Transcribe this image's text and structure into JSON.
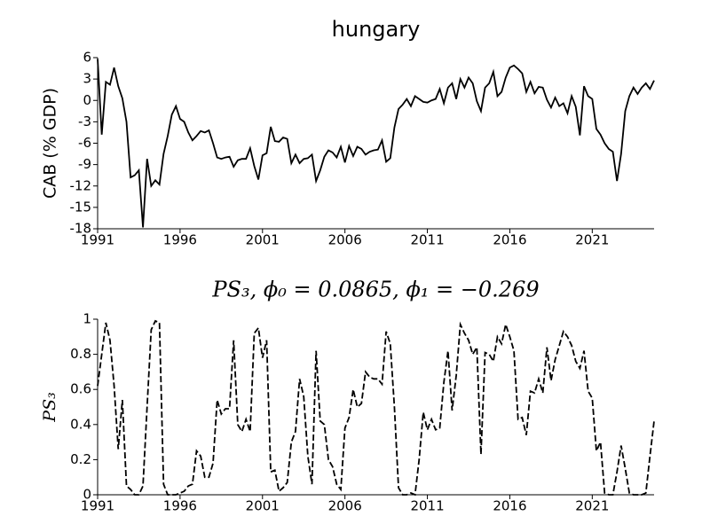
{
  "chart_data": [
    {
      "type": "line",
      "title": "hungary",
      "ylabel": "CAB (% GDP)",
      "x": [
        1991,
        1991.25,
        1991.5,
        1991.75,
        1992,
        1992.25,
        1992.5,
        1992.75,
        1993,
        1993.25,
        1993.5,
        1993.75,
        1994,
        1994.25,
        1994.5,
        1994.75,
        1995,
        1995.25,
        1995.5,
        1995.75,
        1996,
        1996.25,
        1996.5,
        1996.75,
        1997,
        1997.25,
        1997.5,
        1997.75,
        1998,
        1998.25,
        1998.5,
        1998.75,
        1999,
        1999.25,
        1999.5,
        1999.75,
        2000,
        2000.25,
        2000.5,
        2000.75,
        2001,
        2001.25,
        2001.5,
        2001.75,
        2002,
        2002.25,
        2002.5,
        2002.75,
        2003,
        2003.25,
        2003.5,
        2003.75,
        2004,
        2004.25,
        2004.5,
        2004.75,
        2005,
        2005.25,
        2005.5,
        2005.75,
        2006,
        2006.25,
        2006.5,
        2006.75,
        2007,
        2007.25,
        2007.5,
        2007.75,
        2008,
        2008.25,
        2008.5,
        2008.75,
        2009,
        2009.25,
        2009.5,
        2009.75,
        2010,
        2010.25,
        2010.5,
        2010.75,
        2011,
        2011.25,
        2011.5,
        2011.75,
        2012,
        2012.25,
        2012.5,
        2012.75,
        2013,
        2013.25,
        2013.5,
        2013.75,
        2014,
        2014.25,
        2014.5,
        2014.75,
        2015,
        2015.25,
        2015.5,
        2015.75,
        2016,
        2016.25,
        2016.5,
        2016.75,
        2017,
        2017.25,
        2017.5,
        2017.75,
        2018,
        2018.25,
        2018.5,
        2018.75,
        2019,
        2019.25,
        2019.5,
        2019.75,
        2020,
        2020.25,
        2020.5,
        2020.75,
        2021,
        2021.25,
        2021.5,
        2021.75,
        2022,
        2022.25,
        2022.5,
        2022.75,
        2023,
        2023.25,
        2023.5,
        2023.75,
        2024,
        2024.25,
        2024.5,
        2024.75
      ],
      "series": [
        {
          "name": "CAB",
          "color": "#000000",
          "linestyle": "solid",
          "values": [
            5.8,
            -4.8,
            2.6,
            2.2,
            4.6,
            2.0,
            0.3,
            -3.0,
            -10.8,
            -10.5,
            -9.8,
            -17.8,
            -8.2,
            -12.0,
            -11.2,
            -11.8,
            -7.5,
            -5.0,
            -2.0,
            -0.8,
            -2.6,
            -3.0,
            -4.5,
            -5.6,
            -5.0,
            -4.3,
            -4.5,
            -4.2,
            -6.0,
            -8.0,
            -8.2,
            -8.0,
            -7.9,
            -9.3,
            -8.4,
            -8.2,
            -8.2,
            -6.7,
            -9.2,
            -11.1,
            -7.7,
            -7.4,
            -3.7,
            -5.7,
            -5.8,
            -5.2,
            -5.4,
            -8.8,
            -7.6,
            -8.8,
            -8.2,
            -8.1,
            -7.6,
            -11.3,
            -9.8,
            -7.9,
            -7.0,
            -7.3,
            -8.0,
            -6.5,
            -8.7,
            -6.4,
            -7.8,
            -6.5,
            -6.8,
            -7.6,
            -7.2,
            -7.0,
            -6.9,
            -5.6,
            -8.6,
            -8.1,
            -3.8,
            -1.2,
            -0.6,
            0.2,
            -0.8,
            0.6,
            0.2,
            -0.2,
            -0.3,
            0.0,
            0.2,
            1.6,
            -0.4,
            1.8,
            2.4,
            0.2,
            3.0,
            1.8,
            3.2,
            2.4,
            -0.1,
            -1.5,
            1.8,
            2.4,
            4.0,
            0.6,
            1.2,
            3.2,
            4.6,
            4.9,
            4.4,
            3.8,
            1.2,
            2.6,
            1.0,
            1.9,
            1.8,
            0.1,
            -1.0,
            0.4,
            -0.8,
            -0.4,
            -1.8,
            0.6,
            -0.9,
            -4.9,
            2.0,
            0.6,
            0.2,
            -4.0,
            -4.8,
            -6.0,
            -6.8,
            -7.2,
            -11.3,
            -7.5,
            -1.5,
            0.6,
            1.8,
            0.9,
            1.8,
            2.4,
            1.6,
            2.8
          ]
        }
      ],
      "xlim": [
        1991,
        2024.75
      ],
      "xticks": [
        1991,
        1996,
        2001,
        2006,
        2011,
        2016,
        2021
      ],
      "ylim": [
        -18,
        6
      ],
      "yticks": [
        -18,
        -15,
        -12,
        -9,
        -6,
        -3,
        0,
        3,
        6
      ]
    },
    {
      "type": "line",
      "title": "PS₃, ϕ₀ = 0.0865, ϕ₁ = −0.269",
      "ylabel": "PS₃",
      "x": [
        1991,
        1991.25,
        1991.5,
        1991.75,
        1992,
        1992.25,
        1992.5,
        1992.75,
        1993,
        1993.25,
        1993.5,
        1993.75,
        1994,
        1994.25,
        1994.5,
        1994.75,
        1995,
        1995.25,
        1995.5,
        1995.75,
        1996,
        1996.25,
        1996.5,
        1996.75,
        1997,
        1997.25,
        1997.5,
        1997.75,
        1998,
        1998.25,
        1998.5,
        1998.75,
        1999,
        1999.25,
        1999.5,
        1999.75,
        2000,
        2000.25,
        2000.5,
        2000.75,
        2001,
        2001.25,
        2001.5,
        2001.75,
        2002,
        2002.25,
        2002.5,
        2002.75,
        2003,
        2003.25,
        2003.5,
        2003.75,
        2004,
        2004.25,
        2004.5,
        2004.75,
        2005,
        2005.25,
        2005.5,
        2005.75,
        2006,
        2006.25,
        2006.5,
        2006.75,
        2007,
        2007.25,
        2007.5,
        2007.75,
        2008,
        2008.25,
        2008.5,
        2008.75,
        2009,
        2009.25,
        2009.5,
        2009.75,
        2010,
        2010.25,
        2010.5,
        2010.75,
        2011,
        2011.25,
        2011.5,
        2011.75,
        2012,
        2012.25,
        2012.5,
        2012.75,
        2013,
        2013.25,
        2013.5,
        2013.75,
        2014,
        2014.25,
        2014.5,
        2014.75,
        2015,
        2015.25,
        2015.5,
        2015.75,
        2016,
        2016.25,
        2016.5,
        2016.75,
        2017,
        2017.25,
        2017.5,
        2017.75,
        2018,
        2018.25,
        2018.5,
        2018.75,
        2019,
        2019.25,
        2019.5,
        2019.75,
        2020,
        2020.25,
        2020.5,
        2020.75,
        2021,
        2021.25,
        2021.5,
        2021.75,
        2022,
        2022.25,
        2022.5,
        2022.75,
        2023,
        2023.25,
        2023.5,
        2023.75,
        2024,
        2024.25,
        2024.5,
        2024.75
      ],
      "series": [
        {
          "name": "PS3",
          "color": "#000000",
          "linestyle": "dashed",
          "values": [
            0.62,
            0.8,
            0.98,
            0.88,
            0.62,
            0.26,
            0.54,
            0.05,
            0.03,
            0.0,
            0.0,
            0.05,
            0.5,
            0.94,
            0.99,
            0.98,
            0.06,
            0.0,
            0.0,
            0.0,
            0.01,
            0.02,
            0.05,
            0.06,
            0.25,
            0.22,
            0.1,
            0.1,
            0.18,
            0.54,
            0.46,
            0.49,
            0.49,
            0.88,
            0.4,
            0.36,
            0.43,
            0.36,
            0.92,
            0.95,
            0.78,
            0.88,
            0.13,
            0.14,
            0.02,
            0.04,
            0.07,
            0.3,
            0.36,
            0.66,
            0.56,
            0.22,
            0.06,
            0.82,
            0.42,
            0.4,
            0.2,
            0.16,
            0.06,
            0.03,
            0.38,
            0.44,
            0.6,
            0.5,
            0.52,
            0.7,
            0.67,
            0.66,
            0.66,
            0.63,
            0.93,
            0.86,
            0.5,
            0.04,
            0.0,
            0.0,
            0.01,
            0.0,
            0.2,
            0.47,
            0.37,
            0.43,
            0.37,
            0.38,
            0.64,
            0.82,
            0.48,
            0.68,
            0.97,
            0.92,
            0.88,
            0.8,
            0.84,
            0.23,
            0.81,
            0.8,
            0.76,
            0.9,
            0.86,
            0.97,
            0.9,
            0.82,
            0.43,
            0.44,
            0.34,
            0.59,
            0.58,
            0.66,
            0.58,
            0.84,
            0.65,
            0.77,
            0.85,
            0.93,
            0.9,
            0.85,
            0.76,
            0.72,
            0.82,
            0.59,
            0.55,
            0.25,
            0.3,
            0.01,
            0.0,
            0.0,
            0.13,
            0.28,
            0.15,
            0.01,
            0.0,
            0.0,
            0.0,
            0.01,
            0.22,
            0.42
          ]
        }
      ],
      "xlim": [
        1991,
        2024.75
      ],
      "xticks": [
        1991,
        1996,
        2001,
        2006,
        2011,
        2016,
        2021
      ],
      "ylim": [
        0,
        1
      ],
      "yticks": [
        0,
        0.2,
        0.4,
        0.6,
        0.8,
        1
      ]
    }
  ]
}
